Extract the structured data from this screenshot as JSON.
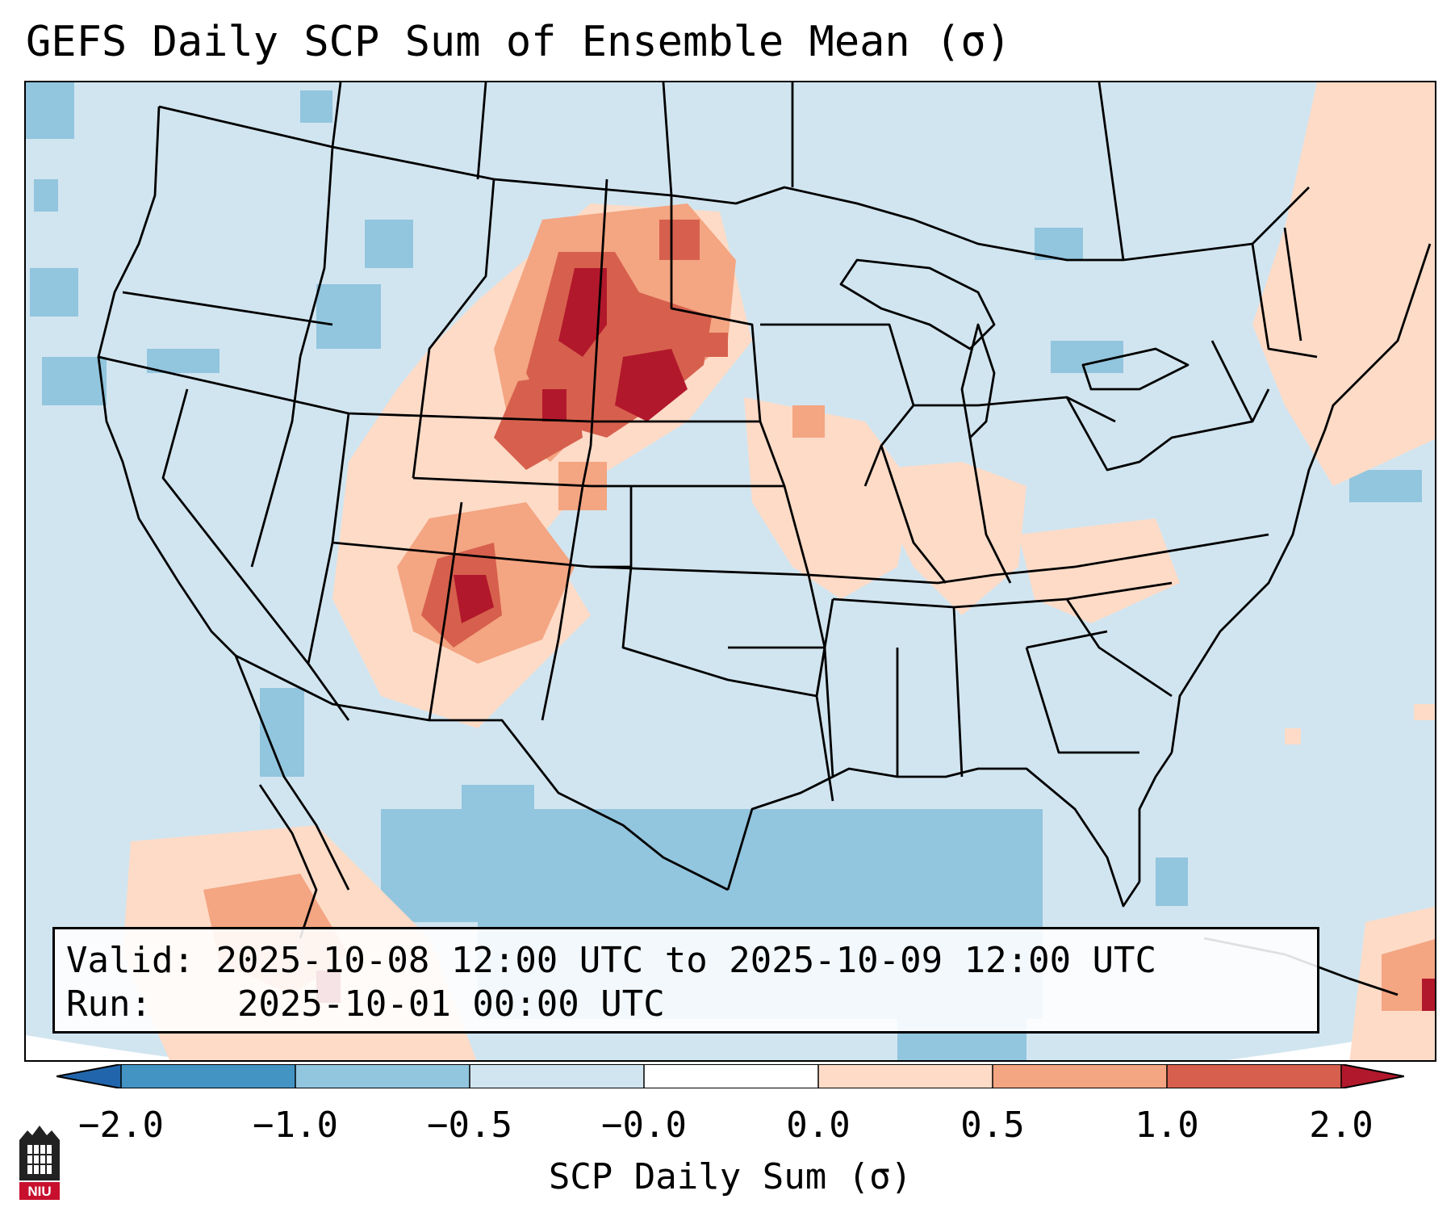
{
  "title": "GEFS Daily SCP Sum of Ensemble Mean (σ)",
  "info": {
    "valid_label": "Valid:",
    "valid_value": "2025-10-08 12:00 UTC to 2025-10-09 12:00 UTC",
    "run_label": "Run:",
    "run_value": "2025-10-01 00:00 UTC"
  },
  "colorbar": {
    "title": "SCP Daily Sum (σ)",
    "ticks": [
      "−2.0",
      "−1.0",
      "−0.5",
      "−0.0",
      "0.0",
      "0.5",
      "1.0",
      "2.0"
    ],
    "colors": [
      "#2166ac",
      "#4393c3",
      "#92c5de",
      "#d1e5f0",
      "#ffffff",
      "#fddbc7",
      "#f4a582",
      "#d6604d",
      "#b2182b"
    ]
  },
  "map": {
    "region": "CONUS",
    "background_color": "#d1e5f0"
  },
  "logo": {
    "text": "NIU",
    "color": "#c8102e"
  }
}
